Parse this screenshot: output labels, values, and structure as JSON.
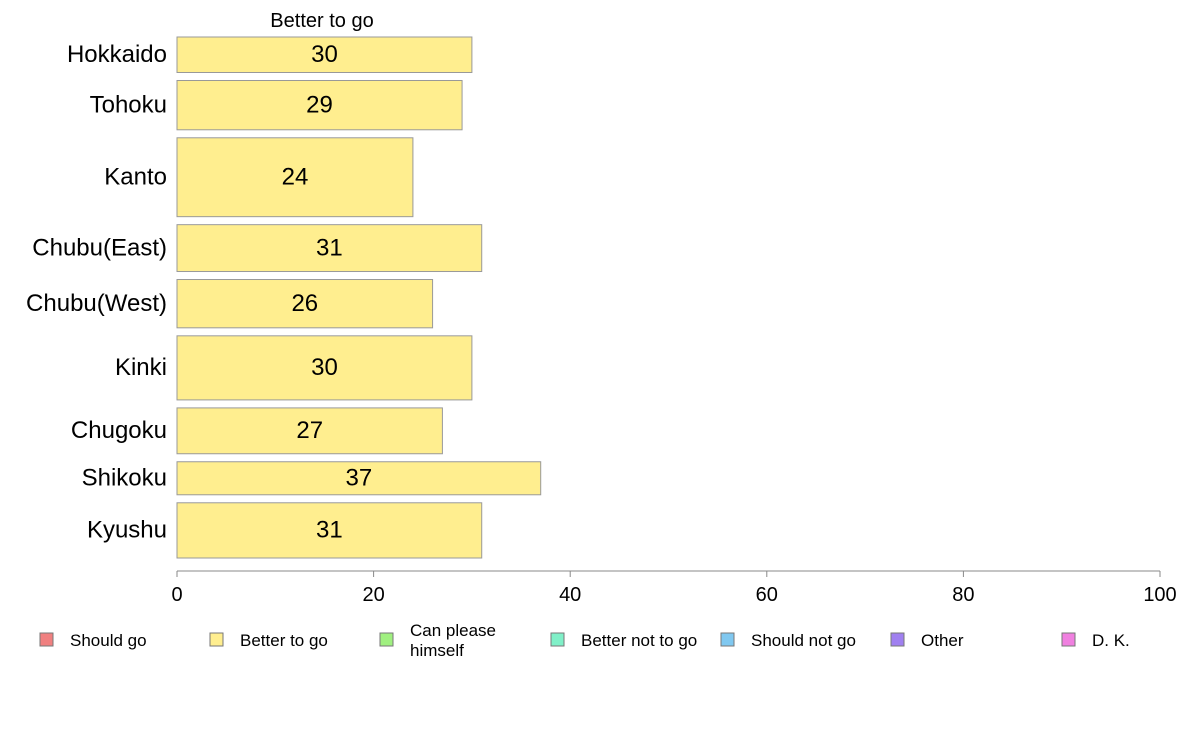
{
  "chart_data": {
    "type": "bar",
    "orientation": "horizontal",
    "title": "Better to go",
    "categories": [
      "Hokkaido",
      "Tohoku",
      "Kanto",
      "Chubu(East)",
      "Chubu(West)",
      "Kinki",
      "Chugoku",
      "Shikoku",
      "Kyushu"
    ],
    "series": [
      {
        "name": "Better to go",
        "values": [
          30,
          29,
          24,
          31,
          26,
          30,
          27,
          37,
          31
        ],
        "color": "#ffee8f"
      }
    ],
    "bar_weights": [
      0.72,
      1.0,
      1.6,
      0.95,
      0.98,
      1.3,
      0.93,
      0.67,
      1.12
    ],
    "xlim": [
      0,
      100
    ],
    "xticks": [
      0,
      20,
      40,
      60,
      80,
      100
    ],
    "xlabel": "",
    "ylabel": "",
    "grid": false,
    "legend": {
      "placement": "bottom",
      "items": [
        {
          "label": "Should go",
          "color": "#f08080"
        },
        {
          "label": "Better to go",
          "color": "#ffee8f"
        },
        {
          "label": "Can please himself",
          "color": "#a0f080"
        },
        {
          "label": "Better not to go",
          "color": "#80f0c8"
        },
        {
          "label": "Should not go",
          "color": "#80c8f0"
        },
        {
          "label": "Other",
          "color": "#a080f0"
        },
        {
          "label": "D. K.",
          "color": "#f080e0"
        }
      ]
    }
  }
}
